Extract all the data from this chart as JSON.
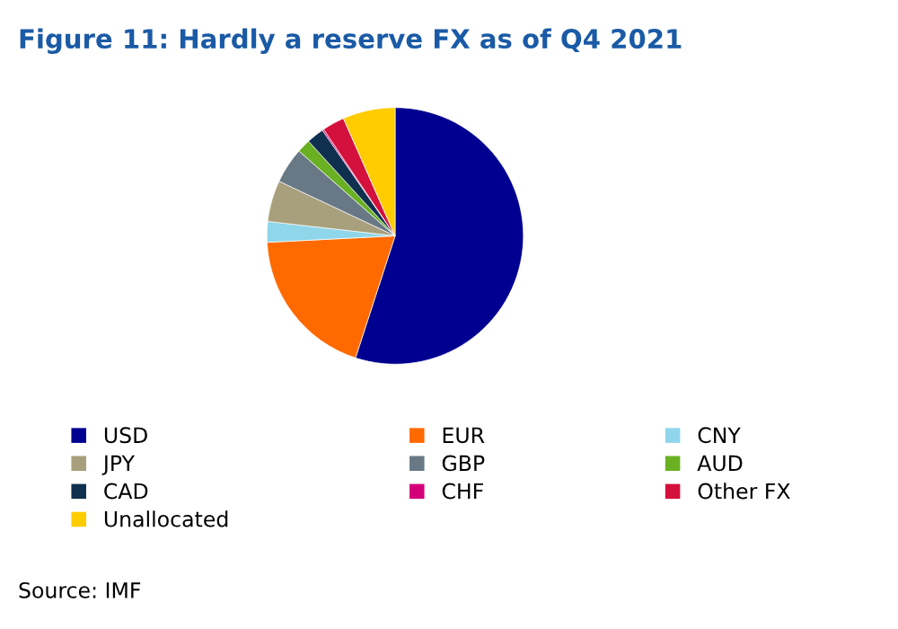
{
  "chart_data": {
    "type": "pie",
    "title": "Figure 11: Hardly a reserve FX as of Q4 2021",
    "categories": [
      "USD",
      "EUR",
      "CNY",
      "JPY",
      "GBP",
      "AUD",
      "CAD",
      "CHF",
      "Other FX",
      "Unallocated"
    ],
    "values": [
      55.0,
      19.2,
      2.6,
      5.2,
      4.5,
      1.7,
      2.2,
      0.2,
      2.8,
      6.6
    ],
    "colors": [
      "#000090",
      "#ff6a00",
      "#8fd6ea",
      "#a8a07c",
      "#687884",
      "#6ab023",
      "#10304f",
      "#d4007a",
      "#d4103c",
      "#ffcc00"
    ],
    "legend": "bottom",
    "annotations": [
      "Source: IMF"
    ]
  }
}
